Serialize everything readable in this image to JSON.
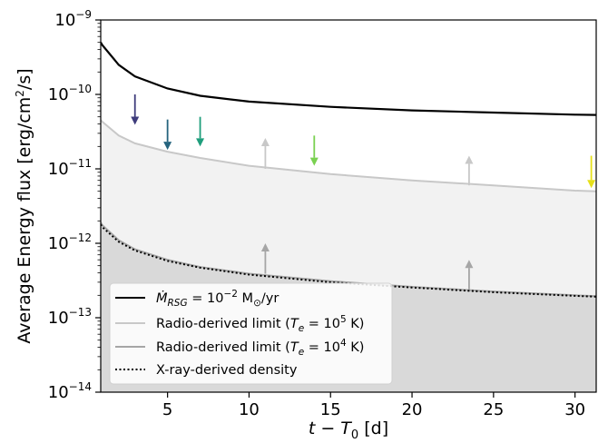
{
  "chart_data": {
    "type": "line",
    "xlabel_parts": [
      "t − T",
      "0",
      " [d]"
    ],
    "ylabel": "Average Energy flux [erg/cm²/s]",
    "ylabel_parts": [
      "Average Energy flux [erg/cm",
      "2",
      "/s]"
    ],
    "xlim": [
      0.9,
      31.3
    ],
    "ylim": [
      1e-14,
      1e-09
    ],
    "yscale": "log",
    "grid": false,
    "legend_position": "lower-left",
    "xticks": [
      5,
      10,
      15,
      20,
      25,
      30
    ],
    "xtick_labels": [
      "5",
      "10",
      "15",
      "20",
      "25",
      "30"
    ],
    "yticks": [
      {
        "value": 1e-14,
        "base": "10",
        "exp": "−14"
      },
      {
        "value": 1e-13,
        "base": "10",
        "exp": "−13"
      },
      {
        "value": 1e-12,
        "base": "10",
        "exp": "−12"
      },
      {
        "value": 1e-11,
        "base": "10",
        "exp": "−11"
      },
      {
        "value": 1e-10,
        "base": "10",
        "exp": "−10"
      },
      {
        "value": 1e-09,
        "base": "10",
        "exp": "−9"
      }
    ],
    "series": [
      {
        "key": "msg",
        "legend_parts": [
          "Ṁ",
          "RSG",
          " = 10",
          "−2",
          " M",
          "⊙",
          "/yr"
        ],
        "color": "#000000",
        "style": "solid",
        "x": [
          0.9,
          1,
          2,
          3,
          5,
          7,
          10,
          15,
          20,
          25,
          30,
          31.3
        ],
        "y": [
          5e-10,
          4.6e-10,
          2.5e-10,
          1.75e-10,
          1.2e-10,
          9.6e-11,
          8e-11,
          6.8e-11,
          6.1e-11,
          5.7e-11,
          5.35e-11,
          5.3e-11
        ]
      },
      {
        "key": "radio5",
        "legend_parts": [
          "Radio-derived limit (",
          "T",
          "e",
          " = 10",
          "5",
          " K)"
        ],
        "color": "#c8c8c8",
        "fill": "#f2f2f2",
        "style": "solid",
        "x": [
          0.9,
          1,
          2,
          3,
          5,
          7,
          10,
          15,
          20,
          25,
          30,
          31.3
        ],
        "y": [
          4.5e-11,
          4.3e-11,
          2.8e-11,
          2.2e-11,
          1.7e-11,
          1.4e-11,
          1.1e-11,
          8.5e-12,
          7e-12,
          6e-12,
          5.1e-12,
          5e-12
        ]
      },
      {
        "key": "radio4",
        "legend_parts": [
          "Radio-derived limit (",
          "T",
          "e",
          " = 10",
          "4",
          " K)"
        ],
        "color": "#a6a6a6",
        "fill": "#d9d9d9",
        "style": "solid",
        "x": [
          0.9,
          1,
          2,
          3,
          5,
          7,
          10,
          15,
          20,
          25,
          30,
          31.3
        ],
        "y": [
          1.9e-12,
          1.75e-12,
          1.1e-12,
          8.3e-13,
          6e-13,
          4.8e-13,
          3.9e-13,
          3.1e-13,
          2.6e-13,
          2.25e-13,
          2e-13,
          1.95e-13
        ]
      },
      {
        "key": "xray",
        "legend_parts": [
          "X-ray-derived density"
        ],
        "color": "#000000",
        "style": "dotted",
        "x": [
          0.9,
          1,
          2,
          3,
          5,
          7,
          10,
          15,
          20,
          25,
          30,
          31.3
        ],
        "y": [
          1.8e-12,
          1.65e-12,
          1.05e-12,
          8e-13,
          5.8e-13,
          4.7e-13,
          3.8e-13,
          3e-13,
          2.55e-13,
          2.2e-13,
          1.97e-13,
          1.92e-13
        ]
      }
    ],
    "upper_limits": [
      {
        "x": 3,
        "y_top": 1e-10,
        "y_tip": 3.9e-11,
        "color": "#3e3c7c"
      },
      {
        "x": 5,
        "y_top": 4.6e-11,
        "y_tip": 1.8e-11,
        "color": "#26647e"
      },
      {
        "x": 7,
        "y_top": 5e-11,
        "y_tip": 2e-11,
        "color": "#1f9e7c"
      },
      {
        "x": 14,
        "y_top": 2.8e-11,
        "y_tip": 1.1e-11,
        "color": "#7ad151"
      },
      {
        "x": 31,
        "y_top": 1.5e-11,
        "y_tip": 5.5e-12,
        "color": "#e6e01a"
      }
    ],
    "lower_limits": [
      {
        "x": 11,
        "y_base": 1e-11,
        "y_tip": 2.6e-11,
        "color": "#c8c8c8"
      },
      {
        "x": 23.5,
        "y_base": 6e-12,
        "y_tip": 1.5e-11,
        "color": "#c8c8c8"
      },
      {
        "x": 11,
        "y_base": 3.9e-13,
        "y_tip": 1e-12,
        "color": "#a6a6a6"
      },
      {
        "x": 23.5,
        "y_base": 2.4e-13,
        "y_tip": 6e-13,
        "color": "#a6a6a6"
      }
    ]
  }
}
